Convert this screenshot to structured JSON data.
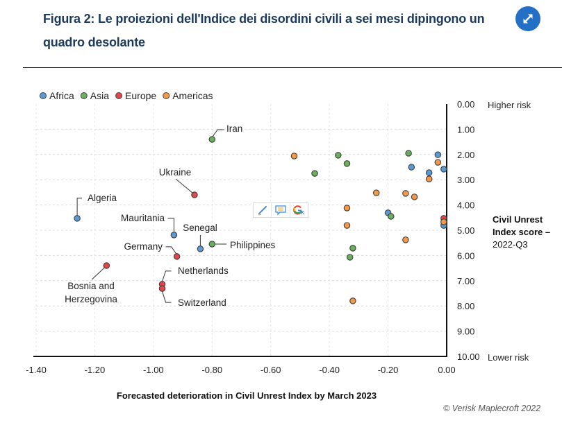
{
  "header": {
    "title": "Figura 2: Le proiezioni dell'Indice dei disordini civili a sei mesi dipingono un quadro desolante",
    "expand_icon": "expand-arrows-icon",
    "accent_color": "#2470c6"
  },
  "credit": "© Verisk Maplecroft 2022",
  "extension_toolbar": {
    "icons": [
      "pencil-icon",
      "comment-icon",
      "google-icon"
    ]
  },
  "chart_data": {
    "type": "scatter",
    "title": "Figura 2: Le proiezioni dell'Indice dei disordini civili a sei mesi dipingono un quadro desolante",
    "xlabel": "Forecasted deterioration in Civil Unrest Index by March 2023",
    "ylabel": {
      "bold": "Civil Unrest Index score –",
      "regular": "2022-Q3"
    },
    "y_top_annotation": "Higher risk",
    "y_bottom_annotation": "Lower risk",
    "xlim": [
      -1.4,
      0.0
    ],
    "ylim": [
      0.0,
      10.0
    ],
    "y_inverted": true,
    "x_ticks": [
      "-1.40",
      "-1.20",
      "-1.00",
      "-0.80",
      "-0.60",
      "-0.40",
      "-0.20",
      "0.00"
    ],
    "x_tick_values": [
      -1.4,
      -1.2,
      -1.0,
      -0.8,
      -0.6,
      -0.4,
      -0.2,
      0.0
    ],
    "y_ticks": [
      "0.00",
      "1.00",
      "2.00",
      "3.00",
      "4.00",
      "5.00",
      "6.00",
      "7.00",
      "8.00",
      "9.00",
      "10.00"
    ],
    "y_tick_values": [
      0,
      1,
      2,
      3,
      4,
      5,
      6,
      7,
      8,
      9,
      10
    ],
    "grid": true,
    "legend_position": "top-left",
    "series": [
      {
        "name": "Africa",
        "color": "#5b9bd5",
        "points": [
          {
            "x": -1.26,
            "y": 4.53,
            "label": "Algeria"
          },
          {
            "x": -0.93,
            "y": 5.19,
            "label": "Mauritania"
          },
          {
            "x": -0.84,
            "y": 5.74,
            "label": "Senegal"
          },
          {
            "x": -0.03,
            "y": 2.01
          },
          {
            "x": -0.12,
            "y": 2.5
          },
          {
            "x": -0.01,
            "y": 2.58
          },
          {
            "x": -0.06,
            "y": 2.72
          },
          {
            "x": -0.2,
            "y": 4.31
          },
          {
            "x": -0.01,
            "y": 4.81
          }
        ]
      },
      {
        "name": "Asia",
        "color": "#6aaf5e",
        "points": [
          {
            "x": -0.8,
            "y": 1.4,
            "label": "Iran"
          },
          {
            "x": -0.8,
            "y": 5.55,
            "label": "Philippines"
          },
          {
            "x": -0.37,
            "y": 2.03
          },
          {
            "x": -0.34,
            "y": 2.36
          },
          {
            "x": -0.45,
            "y": 2.75
          },
          {
            "x": -0.13,
            "y": 1.95
          },
          {
            "x": -0.19,
            "y": 4.45
          },
          {
            "x": -0.32,
            "y": 5.71
          },
          {
            "x": -0.33,
            "y": 6.07
          }
        ]
      },
      {
        "name": "Europe",
        "color": "#e0474c",
        "points": [
          {
            "x": -0.86,
            "y": 3.6,
            "label": "Ukraine"
          },
          {
            "x": -0.92,
            "y": 6.04,
            "label": "Germany"
          },
          {
            "x": -1.16,
            "y": 6.4,
            "label": "Bosnia and Herzegovina"
          },
          {
            "x": -0.97,
            "y": 7.14,
            "label": "Netherlands"
          },
          {
            "x": -0.97,
            "y": 7.31,
            "label": "Switzerland"
          },
          {
            "x": -0.01,
            "y": 4.53
          }
        ]
      },
      {
        "name": "Americas",
        "color": "#f29a4a",
        "points": [
          {
            "x": -0.52,
            "y": 2.06
          },
          {
            "x": -0.03,
            "y": 2.31
          },
          {
            "x": -0.06,
            "y": 2.97
          },
          {
            "x": -0.24,
            "y": 3.52
          },
          {
            "x": -0.14,
            "y": 3.54
          },
          {
            "x": -0.11,
            "y": 3.68
          },
          {
            "x": -0.34,
            "y": 4.12
          },
          {
            "x": -0.34,
            "y": 4.81
          },
          {
            "x": -0.01,
            "y": 4.67
          },
          {
            "x": -0.14,
            "y": 5.38
          },
          {
            "x": -0.32,
            "y": 7.8
          }
        ]
      }
    ]
  }
}
